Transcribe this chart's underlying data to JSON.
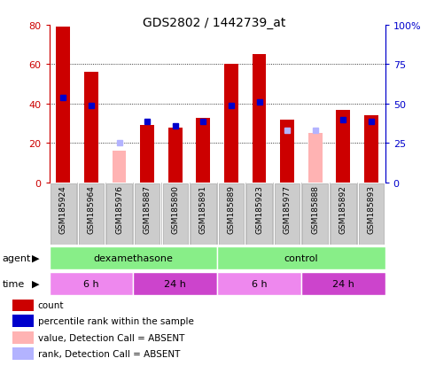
{
  "title": "GDS2802 / 1442739_at",
  "samples": [
    "GSM185924",
    "GSM185964",
    "GSM185976",
    "GSM185887",
    "GSM185890",
    "GSM185891",
    "GSM185889",
    "GSM185923",
    "GSM185977",
    "GSM185888",
    "GSM185892",
    "GSM185893"
  ],
  "count_values": [
    79,
    56,
    0,
    29,
    28,
    33,
    60,
    65,
    32,
    0,
    37,
    34
  ],
  "count_absent": [
    false,
    false,
    true,
    false,
    false,
    false,
    false,
    false,
    false,
    true,
    false,
    false
  ],
  "absent_count_values": [
    0,
    0,
    16,
    0,
    0,
    0,
    0,
    0,
    0,
    25,
    0,
    0
  ],
  "rank_values": [
    54,
    49,
    0,
    39,
    36,
    39,
    49,
    51,
    0,
    0,
    40,
    39
  ],
  "rank_absent": [
    false,
    false,
    true,
    false,
    false,
    false,
    false,
    false,
    true,
    true,
    false,
    false
  ],
  "absent_rank_values": [
    0,
    0,
    25,
    0,
    0,
    0,
    0,
    0,
    33,
    33,
    0,
    0
  ],
  "ylim_left": [
    0,
    80
  ],
  "ylim_right": [
    0,
    100
  ],
  "left_yticks": [
    0,
    20,
    40,
    60,
    80
  ],
  "right_yticks": [
    0,
    25,
    50,
    75,
    100
  ],
  "right_yticklabels": [
    "0",
    "25",
    "50",
    "75",
    "100%"
  ],
  "bar_color": "#cc0000",
  "absent_bar_color": "#ffb3b3",
  "rank_color": "#0000cc",
  "absent_rank_color": "#b3b3ff",
  "agent_groups": [
    {
      "label": "dexamethasone",
      "start": 0,
      "end": 6,
      "color": "#88ee88"
    },
    {
      "label": "control",
      "start": 6,
      "end": 12,
      "color": "#88ee88"
    }
  ],
  "time_groups": [
    {
      "label": "6 h",
      "start": 0,
      "end": 3,
      "color": "#ee88ee"
    },
    {
      "label": "24 h",
      "start": 3,
      "end": 6,
      "color": "#cc44cc"
    },
    {
      "label": "6 h",
      "start": 6,
      "end": 9,
      "color": "#ee88ee"
    },
    {
      "label": "24 h",
      "start": 9,
      "end": 12,
      "color": "#cc44cc"
    }
  ],
  "legend_items": [
    {
      "label": "count",
      "color": "#cc0000"
    },
    {
      "label": "percentile rank within the sample",
      "color": "#0000cc"
    },
    {
      "label": "value, Detection Call = ABSENT",
      "color": "#ffb3b3"
    },
    {
      "label": "rank, Detection Call = ABSENT",
      "color": "#b3b3ff"
    }
  ],
  "background_color": "#ffffff",
  "sample_box_color": "#cccccc",
  "sample_box_edge": "#aaaaaa"
}
